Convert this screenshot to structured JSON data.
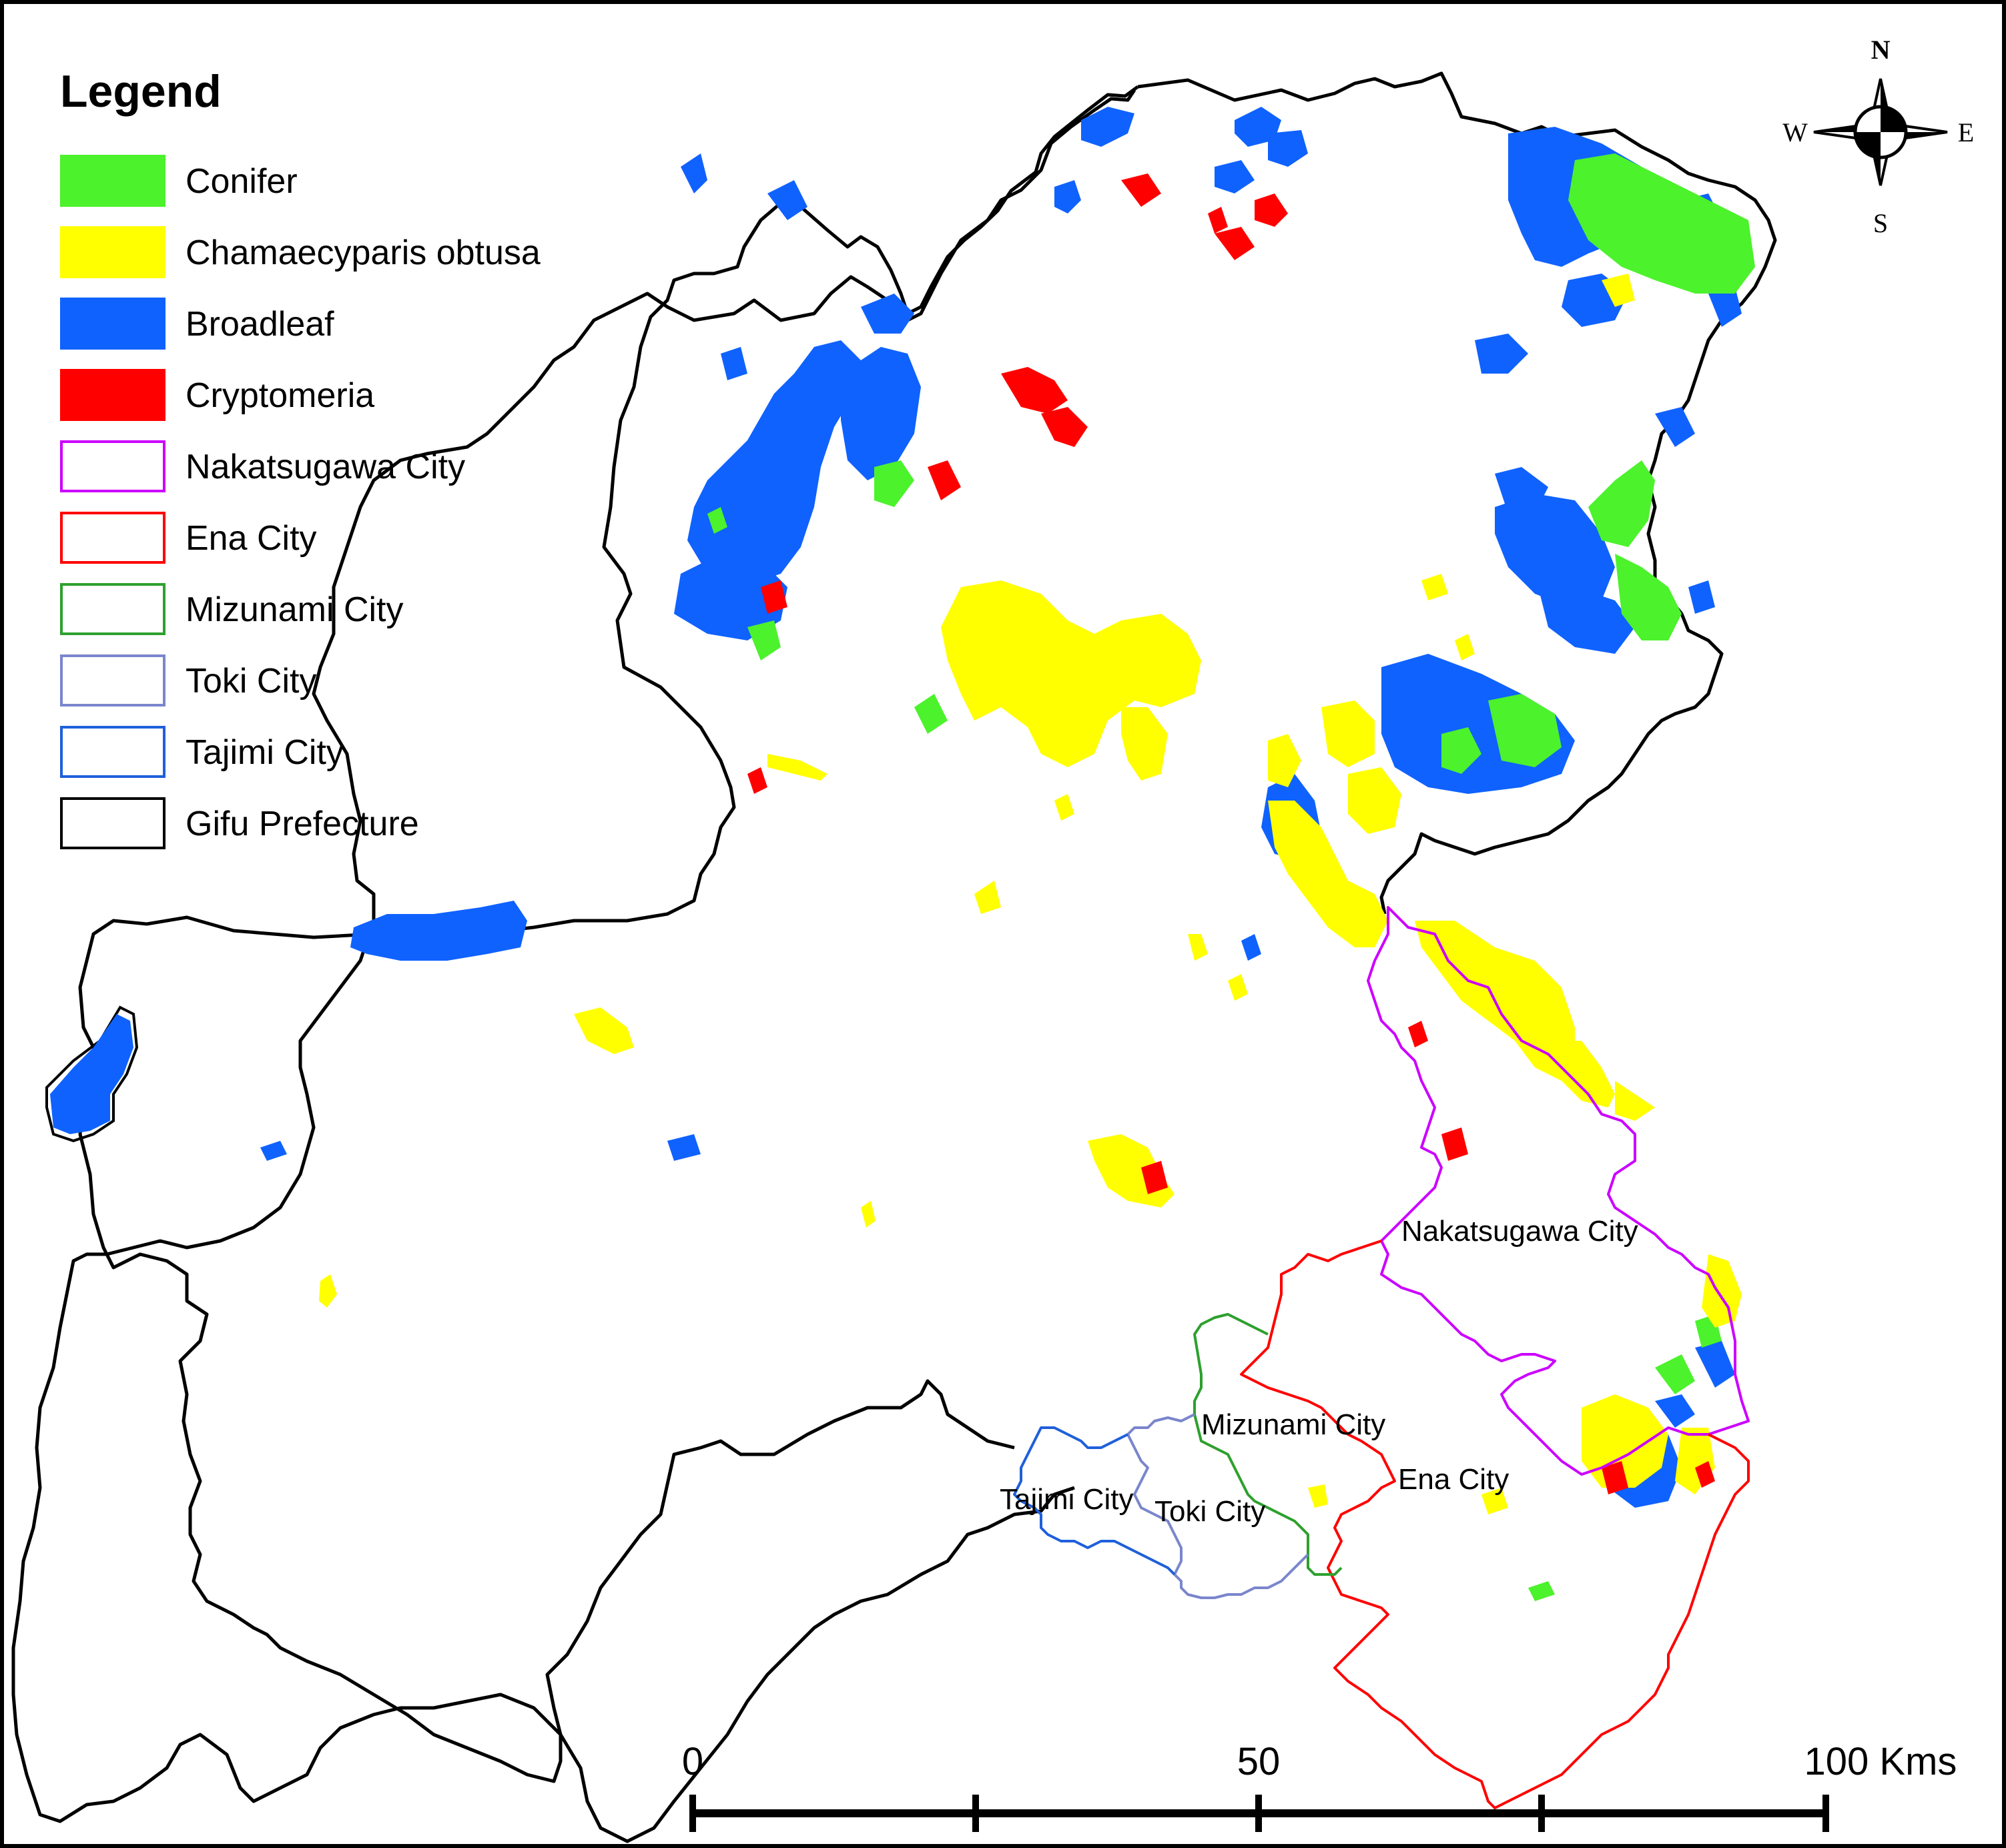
{
  "legend": {
    "title": "Legend",
    "items": [
      {
        "label": "Conifer",
        "kind": "fill",
        "color": "#4cf22c"
      },
      {
        "label": "Chamaecyparis obtusa",
        "kind": "fill",
        "color": "#ffff00"
      },
      {
        "label": "Broadleaf",
        "kind": "fill",
        "color": "#0f62fe"
      },
      {
        "label": "Cryptomeria",
        "kind": "fill",
        "color": "#ff0000"
      },
      {
        "label": "Nakatsugawa City",
        "kind": "outline",
        "color": "#cc00ff"
      },
      {
        "label": "Ena City",
        "kind": "outline",
        "color": "#ff0000"
      },
      {
        "label": "Mizunami City",
        "kind": "outline",
        "color": "#2ea02e"
      },
      {
        "label": "Toki City",
        "kind": "outline",
        "color": "#7a86cc"
      },
      {
        "label": "Tajimi City",
        "kind": "outline",
        "color": "#1f5fdc"
      },
      {
        "label": "Gifu Prefecture",
        "kind": "outline",
        "color": "#000000"
      }
    ]
  },
  "north_arrow": {
    "n": "N",
    "s": "S",
    "e": "E",
    "w": "W"
  },
  "city_labels": {
    "nakatsugawa": "Nakatsugawa City",
    "mizunami": "Mizunami City",
    "ena": "Ena City",
    "tajimi": "Tajimi City",
    "toki": "Toki City"
  },
  "scale_bar": {
    "label_0": "0",
    "label_50": "50",
    "label_100": "100 Kms"
  },
  "colors": {
    "conifer": "#4cf22c",
    "hinoki": "#ffff00",
    "broadleaf": "#0f62fe",
    "cryptomeria": "#ff0000"
  }
}
